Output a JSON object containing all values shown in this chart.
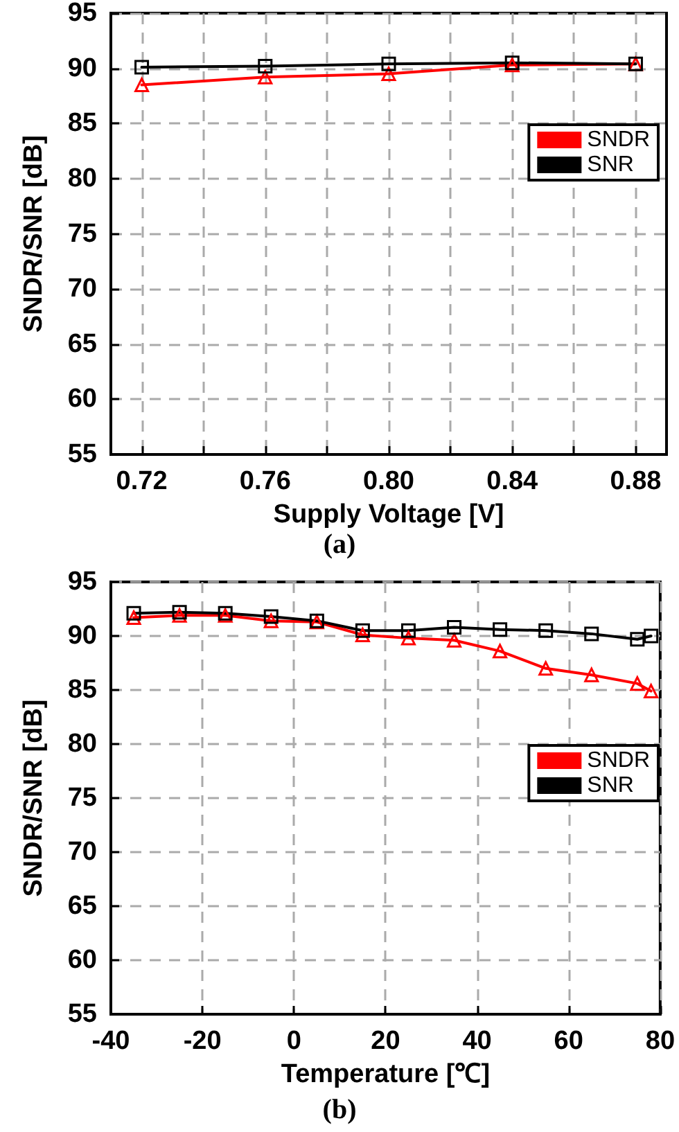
{
  "chart_data": [
    {
      "type": "line",
      "title": "(a)",
      "xlabel": "Supply Voltage [V]",
      "ylabel": "SNDR/SNR [dB]",
      "x": [
        0.72,
        0.76,
        0.8,
        0.84,
        0.88
      ],
      "series": [
        {
          "name": "SNDR",
          "color": "#ff0000",
          "marker": "triangle",
          "values": [
            88.5,
            89.2,
            89.5,
            90.3,
            90.4
          ]
        },
        {
          "name": "SNR",
          "color": "#000000",
          "marker": "square",
          "values": [
            90.1,
            90.2,
            90.4,
            90.5,
            90.4
          ]
        }
      ],
      "xlim": [
        0.71,
        0.89
      ],
      "xticks": [
        0.72,
        {
          "value": 0.74,
          "label": null
        },
        0.76,
        {
          "value": 0.78,
          "label": null
        },
        {
          "value": 0.8,
          "label": "0.80"
        },
        {
          "value": 0.82,
          "label": null
        },
        0.84,
        {
          "value": 0.86,
          "label": null
        },
        0.88
      ],
      "ylim": [
        55,
        95
      ],
      "yticks": [
        55,
        60,
        65,
        70,
        75,
        80,
        85,
        90,
        95
      ],
      "grid": true,
      "legend": "top right",
      "line_style": "solid"
    },
    {
      "type": "line",
      "title": "(b)",
      "xlabel": "Temperature [℃]",
      "ylabel": "SNDR/SNR [dB]",
      "x": [
        -35,
        -25,
        -15,
        -5,
        5,
        15,
        25,
        35,
        45,
        55,
        65,
        75,
        78
      ],
      "series": [
        {
          "name": "SNDR",
          "color": "#ff0000",
          "marker": "triangle",
          "values": [
            91.7,
            91.9,
            91.9,
            91.4,
            91.3,
            90.1,
            89.8,
            89.6,
            88.6,
            87.0,
            86.4,
            85.6,
            84.9
          ]
        },
        {
          "name": "SNR",
          "color": "#000000",
          "marker": "square",
          "values": [
            92.1,
            92.2,
            92.1,
            91.8,
            91.4,
            90.5,
            90.5,
            90.8,
            90.6,
            90.5,
            90.2,
            89.7,
            90.0
          ]
        }
      ],
      "xlim": [
        -40,
        80
      ],
      "xticks": [
        -40,
        -20,
        0,
        20,
        40,
        60,
        80
      ],
      "ylim": [
        55,
        95
      ],
      "yticks": [
        55,
        60,
        65,
        70,
        75,
        80,
        85,
        90,
        95
      ],
      "grid": true,
      "legend": "right",
      "line_style": "solid"
    }
  ]
}
